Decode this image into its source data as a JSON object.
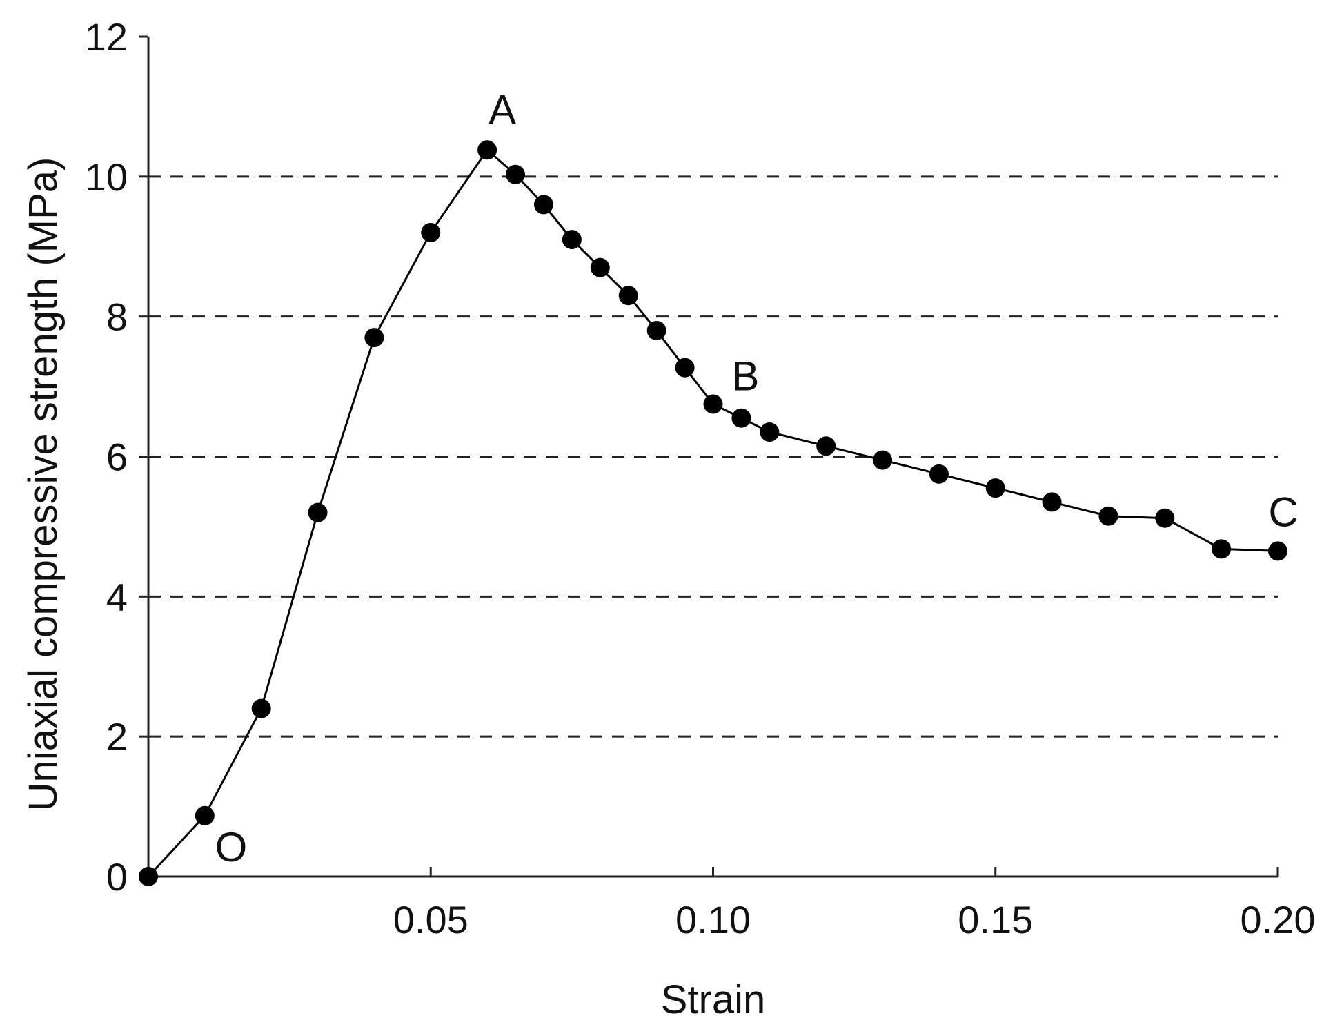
{
  "chart_data": {
    "type": "line",
    "title": "",
    "xlabel": "Strain",
    "ylabel": "Uniaxial compressive strength (MPa)",
    "xlim": [
      0,
      0.2
    ],
    "ylim": [
      0,
      12
    ],
    "x_ticks": [
      {
        "value": 0.05,
        "label": "0.05"
      },
      {
        "value": 0.1,
        "label": "0.10"
      },
      {
        "value": 0.15,
        "label": "0.15"
      },
      {
        "value": 0.2,
        "label": "0.20"
      }
    ],
    "y_ticks": [
      {
        "value": 0,
        "label": "0"
      },
      {
        "value": 2,
        "label": "2"
      },
      {
        "value": 4,
        "label": "4"
      },
      {
        "value": 6,
        "label": "6"
      },
      {
        "value": 8,
        "label": "8"
      },
      {
        "value": 10,
        "label": "10"
      },
      {
        "value": 12,
        "label": "12"
      }
    ],
    "grid": {
      "axis": "y",
      "style": "dashed",
      "values": [
        2,
        4,
        6,
        8,
        10
      ]
    },
    "series": [
      {
        "marker": "filled-circle",
        "color": "#000000",
        "x": [
          0,
          0.01,
          0.02,
          0.03,
          0.04,
          0.05,
          0.06,
          0.065,
          0.07,
          0.075,
          0.08,
          0.085,
          0.09,
          0.095,
          0.1,
          0.105,
          0.11,
          0.12,
          0.13,
          0.14,
          0.15,
          0.16,
          0.17,
          0.18,
          0.19,
          0.2
        ],
        "y": [
          0,
          0.87,
          2.4,
          5.2,
          7.7,
          9.2,
          10.38,
          10.03,
          9.6,
          9.1,
          8.7,
          8.3,
          7.8,
          7.27,
          6.75,
          6.55,
          6.35,
          6.15,
          5.95,
          5.75,
          5.55,
          5.35,
          5.15,
          5.12,
          4.68,
          4.65
        ]
      }
    ],
    "annotations": [
      {
        "text": "O",
        "x": 0.0,
        "y": 0.0
      },
      {
        "text": "A",
        "x": 0.06,
        "y": 10.38
      },
      {
        "text": "B",
        "x": 0.105,
        "y": 6.55
      },
      {
        "text": "C",
        "x": 0.2,
        "y": 4.65
      }
    ]
  }
}
